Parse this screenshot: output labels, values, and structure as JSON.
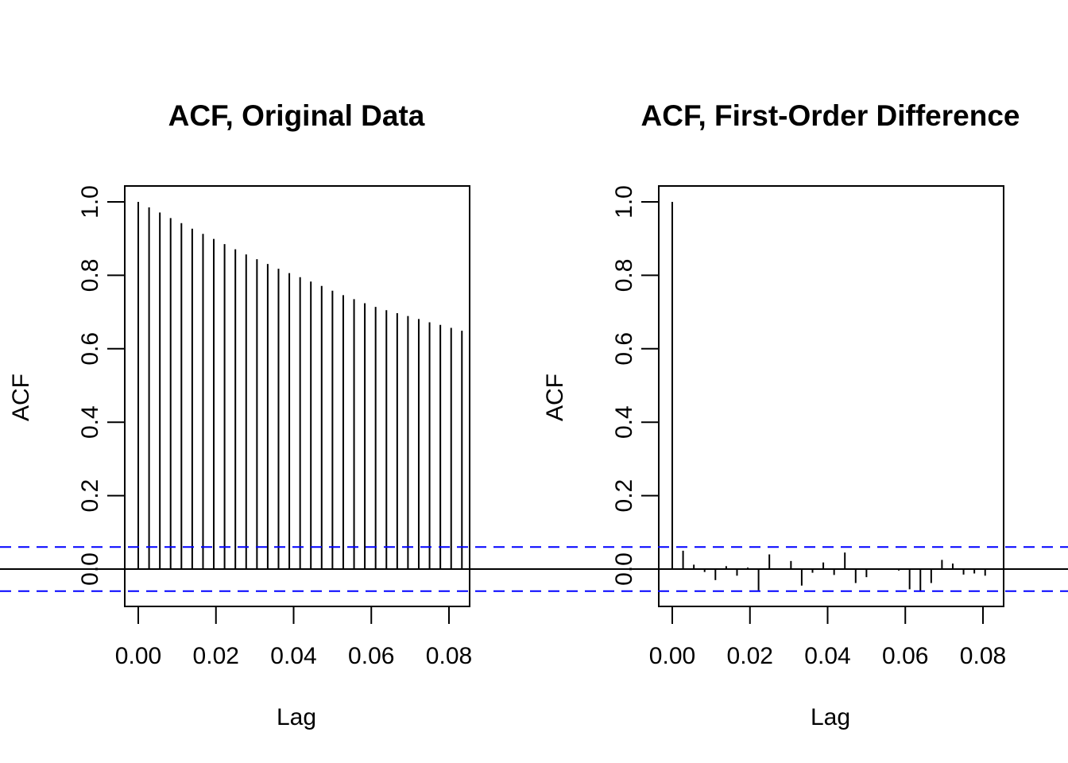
{
  "chart_data": [
    {
      "type": "bar",
      "title": "ACF, Original Data",
      "xlabel": "Lag",
      "ylabel": "ACF",
      "xlim": [
        0.0,
        0.084
      ],
      "ylim": [
        -0.1,
        1.04
      ],
      "x_ticks": [
        "0.00",
        "0.02",
        "0.04",
        "0.06",
        "0.08"
      ],
      "y_ticks": [
        "0.0",
        "0.2",
        "0.4",
        "0.6",
        "0.8",
        "1.0"
      ],
      "confidence_band": 0.06,
      "confidence_color": "#0000ff",
      "lags": [
        0.0,
        0.00278,
        0.00556,
        0.00833,
        0.01111,
        0.01389,
        0.01667,
        0.01944,
        0.02222,
        0.025,
        0.02778,
        0.03056,
        0.03333,
        0.03611,
        0.03889,
        0.04167,
        0.04444,
        0.04722,
        0.05,
        0.05278,
        0.05556,
        0.05833,
        0.06111,
        0.06389,
        0.06667,
        0.06944,
        0.07222,
        0.075,
        0.07778,
        0.08056,
        0.08333
      ],
      "values": [
        1.0,
        0.985,
        0.971,
        0.956,
        0.942,
        0.927,
        0.913,
        0.899,
        0.885,
        0.871,
        0.857,
        0.844,
        0.831,
        0.818,
        0.806,
        0.795,
        0.783,
        0.771,
        0.758,
        0.746,
        0.735,
        0.724,
        0.714,
        0.705,
        0.697,
        0.689,
        0.681,
        0.672,
        0.665,
        0.657,
        0.649
      ]
    },
    {
      "type": "bar",
      "title": "ACF, First-Order Difference",
      "xlabel": "Lag",
      "ylabel": "ACF",
      "xlim": [
        0.0,
        0.084
      ],
      "ylim": [
        -0.1,
        1.04
      ],
      "x_ticks": [
        "0.00",
        "0.02",
        "0.04",
        "0.06",
        "0.08"
      ],
      "y_ticks": [
        "0.0",
        "0.2",
        "0.4",
        "0.6",
        "0.8",
        "1.0"
      ],
      "confidence_band": 0.06,
      "confidence_color": "#0000ff",
      "lags": [
        0.0,
        0.00278,
        0.00556,
        0.00833,
        0.01111,
        0.01389,
        0.01667,
        0.01944,
        0.02222,
        0.025,
        0.02778,
        0.03056,
        0.03333,
        0.03611,
        0.03889,
        0.04167,
        0.04444,
        0.04722,
        0.05,
        0.05278,
        0.05556,
        0.05833,
        0.06111,
        0.06389,
        0.06667,
        0.06944,
        0.07222,
        0.075,
        0.07778,
        0.08056
      ],
      "values": [
        1.0,
        0.05,
        0.012,
        -0.008,
        -0.03,
        0.008,
        -0.018,
        0.004,
        -0.058,
        0.04,
        -0.002,
        0.022,
        -0.045,
        -0.01,
        0.018,
        -0.016,
        0.045,
        -0.038,
        -0.022,
        0.0,
        0.0,
        -0.004,
        -0.055,
        -0.062,
        -0.038,
        0.025,
        0.015,
        -0.015,
        -0.012,
        -0.018
      ]
    }
  ]
}
